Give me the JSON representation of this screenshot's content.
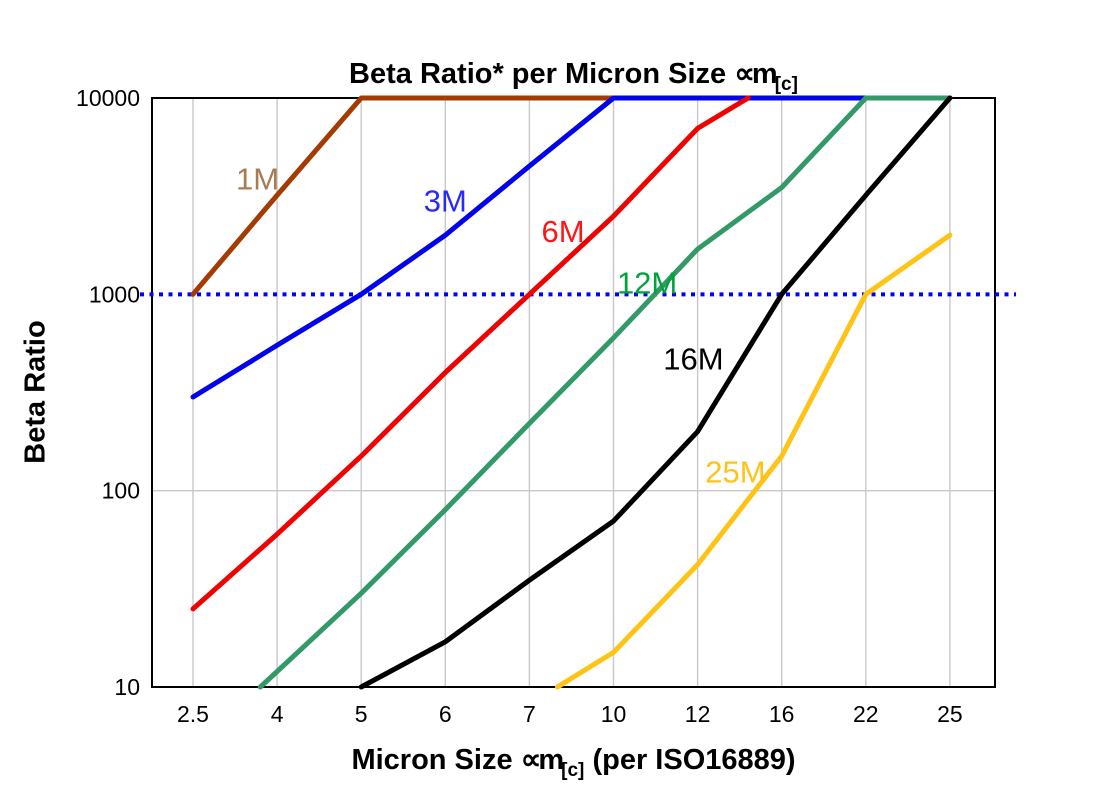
{
  "page": {
    "background": "#FFFFFF"
  },
  "chart_data": {
    "type": "line",
    "title": {
      "text": "Beta Ratio* per Micron Size ∝m[c]",
      "parts": {
        "main": "Beta Ratio* per Micron Size ",
        "symbol": "∝m",
        "subscript": "[c]"
      }
    },
    "xlabel": {
      "text": "Micron Size ∝m[c] (per ISO16889)",
      "parts": {
        "pre": "Micron Size ",
        "symbol": "∝m",
        "subscript": "[c]",
        "post": " (per ISO16889)"
      }
    },
    "ylabel": "Beta Ratio",
    "x_axis": {
      "scale": "categorical-even-spacing",
      "categories": [
        "2.5",
        "4",
        "5",
        "6",
        "7",
        "10",
        "12",
        "16",
        "22",
        "25"
      ],
      "values": [
        2.5,
        4,
        5,
        6,
        7,
        10,
        12,
        16,
        22,
        25
      ]
    },
    "y_axis": {
      "scale": "log",
      "min": 10,
      "max": 10000,
      "ticks": [
        10,
        100,
        1000,
        10000
      ]
    },
    "grid": {
      "vertical_at_each_category": true,
      "horizontal_at": [
        100
      ],
      "color": "#C8C8C8"
    },
    "reference_line": {
      "value": 1000,
      "color": "#0000FF",
      "style": "dotted"
    },
    "series": [
      {
        "name": "1M",
        "line_color": "#A43B03",
        "label_color": "#A87C52",
        "label_pos": [
          3.65,
          3900
        ],
        "points": [
          [
            2.5,
            1000
          ],
          [
            4,
            3200
          ],
          [
            5,
            10000
          ],
          [
            25,
            10000
          ]
        ]
      },
      {
        "name": "3M",
        "line_color": "#0202EC",
        "label_color": "#2828FF",
        "label_pos": [
          6.0,
          3000
        ],
        "points": [
          [
            2.5,
            300
          ],
          [
            4,
            550
          ],
          [
            5,
            1000
          ],
          [
            6,
            2000
          ],
          [
            7,
            4500
          ],
          [
            10,
            10000
          ],
          [
            25,
            10000
          ]
        ]
      },
      {
        "name": "6M",
        "line_color": "#EE0202",
        "label_color": "#FF1515",
        "label_pos": [
          8.2,
          2100
        ],
        "points": [
          [
            2.5,
            25
          ],
          [
            4,
            60
          ],
          [
            5,
            150
          ],
          [
            6,
            400
          ],
          [
            7,
            1000
          ],
          [
            10,
            2500
          ],
          [
            12,
            7000
          ],
          [
            14.4,
            10000
          ]
        ]
      },
      {
        "name": "12M",
        "line_color": "#339966",
        "label_color": "#00A23C",
        "label_pos": [
          10.8,
          1150
        ],
        "points": [
          [
            3.7,
            10
          ],
          [
            4,
            12
          ],
          [
            5,
            30
          ],
          [
            6,
            80
          ],
          [
            7,
            220
          ],
          [
            10,
            600
          ],
          [
            12,
            1700
          ],
          [
            16,
            3500
          ],
          [
            22,
            10000
          ],
          [
            25,
            10000
          ]
        ]
      },
      {
        "name": "16M",
        "line_color": "#000000",
        "label_color": "#000000",
        "label_pos": [
          11.9,
          470
        ],
        "points": [
          [
            5,
            10
          ],
          [
            6,
            17
          ],
          [
            7,
            35
          ],
          [
            10,
            70
          ],
          [
            12,
            200
          ],
          [
            16,
            1000
          ],
          [
            22,
            3200
          ],
          [
            25,
            10000
          ]
        ]
      },
      {
        "name": "25M",
        "line_color": "#FFC316",
        "label_color": "#FFC316",
        "label_pos": [
          13.8,
          125
        ],
        "points": [
          [
            8,
            10
          ],
          [
            10,
            15
          ],
          [
            12,
            42
          ],
          [
            16,
            150
          ],
          [
            22,
            1000
          ],
          [
            25,
            2000
          ]
        ]
      }
    ]
  }
}
